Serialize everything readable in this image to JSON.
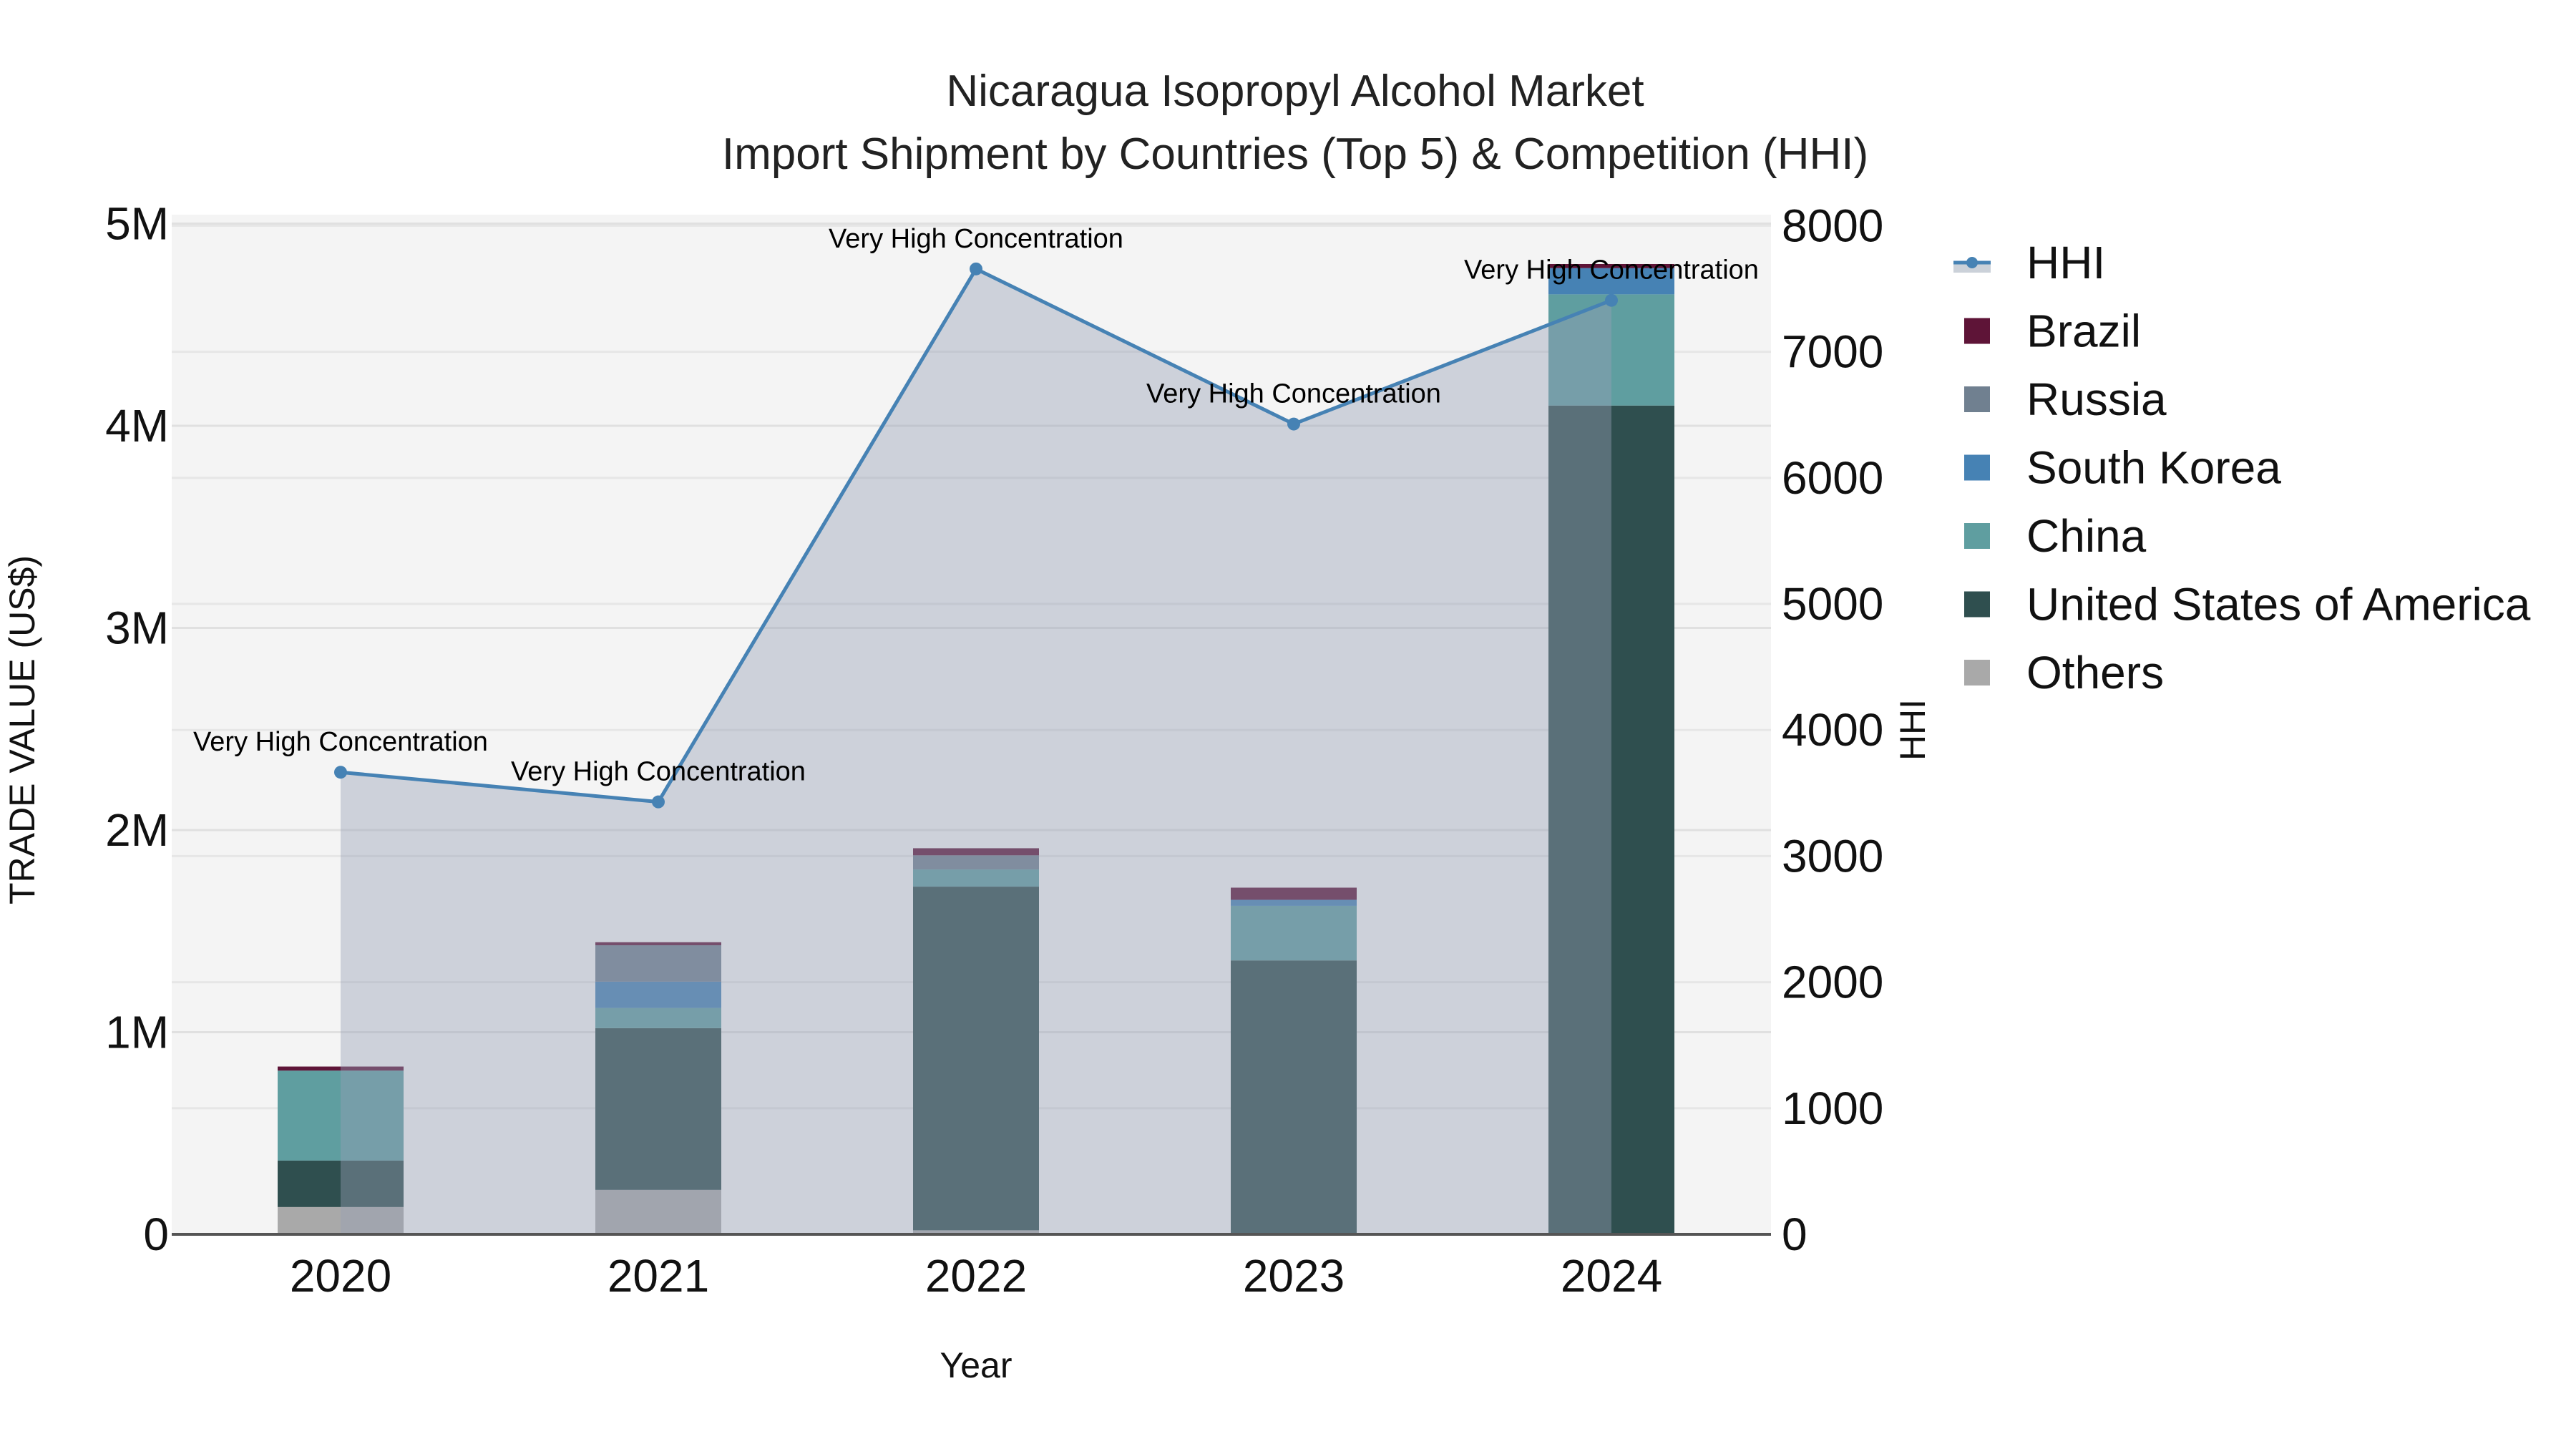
{
  "title": {
    "line1": "Nicaragua Isopropyl Alcohol Market",
    "line2": "Import Shipment by Countries (Top 5) & Competition (HHI)"
  },
  "axes": {
    "x_title": "Year",
    "y_left_title": "TRADE VALUE (US$)",
    "y_right_title": "HHI",
    "y_left_ticks": [
      "0",
      "1M",
      "2M",
      "3M",
      "4M",
      "5M"
    ],
    "y_right_ticks": [
      "0",
      "1000",
      "2000",
      "3000",
      "4000",
      "5000",
      "6000",
      "7000",
      "8000"
    ]
  },
  "legend": [
    {
      "label": "HHI",
      "type": "line",
      "color": "#4682b4"
    },
    {
      "label": "Brazil",
      "type": "bar",
      "color": "#5e1437"
    },
    {
      "label": "Russia",
      "type": "bar",
      "color": "#708090"
    },
    {
      "label": "South Korea",
      "type": "bar",
      "color": "#4682b4"
    },
    {
      "label": "China",
      "type": "bar",
      "color": "#5f9ea0"
    },
    {
      "label": "United States of America",
      "type": "bar",
      "color": "#2f4f4f"
    },
    {
      "label": "Others",
      "type": "bar",
      "color": "#a9a9a9"
    }
  ],
  "annotations": [
    {
      "year": "2020",
      "text": "Very High Concentration"
    },
    {
      "year": "2021",
      "text": "Very High Concentration"
    },
    {
      "year": "2022",
      "text": "Very High Concentration"
    },
    {
      "year": "2023",
      "text": "Very High Concentration"
    },
    {
      "year": "2024",
      "text": "Very High Concentration"
    }
  ],
  "colors": {
    "plot_bg": "#f4f4f4",
    "grid": "#e2e2e2",
    "hhi_line": "#4682b4",
    "hhi_fill": "rgba(160,170,190,0.5)"
  },
  "chart_data": {
    "type": "bar",
    "title": "Nicaragua Isopropyl Alcohol Market — Import Shipment by Countries (Top 5) & Competition (HHI)",
    "xlabel": "Year",
    "ylabel": "TRADE VALUE (US$)",
    "y2label": "HHI",
    "categories": [
      "2020",
      "2021",
      "2022",
      "2023",
      "2024"
    ],
    "stacked": true,
    "ylim": [
      0,
      5050000
    ],
    "y2lim": [
      0,
      8050
    ],
    "grid": true,
    "legend_position": "right",
    "series": [
      {
        "name": "Others",
        "color": "#a9a9a9",
        "values": [
          135000,
          220000,
          20000,
          5000,
          0
        ]
      },
      {
        "name": "United States of America",
        "color": "#2f4f4f",
        "values": [
          230000,
          800000,
          1700000,
          1350000,
          4100000
        ]
      },
      {
        "name": "China",
        "color": "#5f9ea0",
        "values": [
          445000,
          100000,
          85000,
          270000,
          550000
        ]
      },
      {
        "name": "South Korea",
        "color": "#4682b4",
        "values": [
          0,
          130000,
          0,
          30000,
          130000
        ]
      },
      {
        "name": "Russia",
        "color": "#708090",
        "values": [
          0,
          180000,
          70000,
          0,
          0
        ]
      },
      {
        "name": "Brazil",
        "color": "#5e1437",
        "values": [
          20000,
          15000,
          35000,
          60000,
          20000
        ]
      }
    ],
    "line_series": {
      "name": "HHI",
      "axis": "right",
      "type": "line+area",
      "color": "#4682b4",
      "values": [
        3665,
        3430,
        7657,
        6427,
        7408
      ],
      "labels": [
        "Very High Concentration",
        "Very High Concentration",
        "Very High Concentration",
        "Very High Concentration",
        "Very High Concentration"
      ]
    }
  }
}
